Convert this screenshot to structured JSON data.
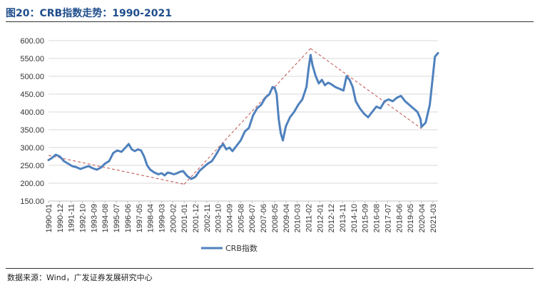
{
  "header": {
    "title": "图20：CRB指数走势：1990-2021"
  },
  "footer": {
    "source": "数据来源：Wind，广发证券发展研究中心"
  },
  "chart_data": {
    "type": "line",
    "title": "图20：CRB指数走势：1990-2021",
    "xlabel": "",
    "ylabel": "",
    "ylim": [
      150,
      600
    ],
    "y_ticks": [
      "150.00",
      "200.00",
      "250.00",
      "300.00",
      "350.00",
      "400.00",
      "450.00",
      "500.00",
      "550.00",
      "600.00"
    ],
    "x_tick_labels": [
      "1990-01",
      "1990-12",
      "1991-11",
      "1992-10",
      "1993-09",
      "1994-08",
      "1995-07",
      "1996-06",
      "1997-05",
      "1998-04",
      "1999-03",
      "2000-02",
      "2001-01",
      "2001-12",
      "2002-11",
      "2003-10",
      "2004-09",
      "2005-08",
      "2006-07",
      "2007-06",
      "2008-05",
      "2009-04",
      "2010-03",
      "2011-02",
      "2012-01",
      "2012-12",
      "2013-11",
      "2014-10",
      "2015-09",
      "2016-08",
      "2017-07",
      "2018-06",
      "2019-05",
      "2020-04",
      "2021-03"
    ],
    "x_range": [
      "1990-01",
      "2021-08"
    ],
    "grid": "horizontal",
    "legend": "bottom-center",
    "colors": {
      "series": "#4f81bd",
      "trend": "#c0504d"
    },
    "series": [
      {
        "name": "CRB指数",
        "x": [
          "1990-01",
          "1990-04",
          "1990-08",
          "1990-12",
          "1991-04",
          "1991-08",
          "1991-12",
          "1992-04",
          "1992-08",
          "1992-12",
          "1993-04",
          "1993-08",
          "1993-12",
          "1994-04",
          "1994-08",
          "1994-12",
          "1995-04",
          "1995-08",
          "1995-12",
          "1996-04",
          "1996-07",
          "1996-10",
          "1997-01",
          "1997-04",
          "1997-07",
          "1997-10",
          "1998-01",
          "1998-04",
          "1998-08",
          "1998-12",
          "1999-03",
          "1999-06",
          "1999-09",
          "1999-12",
          "2000-03",
          "2000-06",
          "2000-09",
          "2000-12",
          "2001-04",
          "2001-08",
          "2001-12",
          "2002-04",
          "2002-08",
          "2002-12",
          "2003-04",
          "2003-08",
          "2003-12",
          "2004-03",
          "2004-06",
          "2004-09",
          "2004-12",
          "2005-04",
          "2005-08",
          "2005-12",
          "2006-04",
          "2006-08",
          "2006-12",
          "2007-04",
          "2007-08",
          "2007-12",
          "2008-03",
          "2008-05",
          "2008-07",
          "2008-09",
          "2008-11",
          "2009-01",
          "2009-04",
          "2009-08",
          "2009-12",
          "2010-04",
          "2010-08",
          "2010-12",
          "2011-02",
          "2011-04",
          "2011-06",
          "2011-09",
          "2011-12",
          "2012-03",
          "2012-06",
          "2012-09",
          "2012-12",
          "2013-04",
          "2013-08",
          "2013-12",
          "2014-03",
          "2014-06",
          "2014-09",
          "2014-12",
          "2015-04",
          "2015-08",
          "2015-12",
          "2016-04",
          "2016-08",
          "2016-12",
          "2017-04",
          "2017-08",
          "2017-12",
          "2018-04",
          "2018-08",
          "2018-12",
          "2019-04",
          "2019-08",
          "2019-12",
          "2020-03",
          "2020-04",
          "2020-08",
          "2020-12",
          "2021-03",
          "2021-05",
          "2021-08"
        ],
        "values": [
          265,
          270,
          280,
          275,
          262,
          255,
          248,
          245,
          240,
          244,
          248,
          242,
          238,
          244,
          255,
          262,
          285,
          292,
          288,
          300,
          310,
          295,
          290,
          295,
          292,
          275,
          250,
          238,
          230,
          225,
          228,
          222,
          230,
          228,
          225,
          228,
          232,
          234,
          220,
          212,
          218,
          235,
          245,
          255,
          262,
          280,
          300,
          310,
          295,
          300,
          290,
          305,
          320,
          345,
          355,
          390,
          410,
          420,
          440,
          450,
          470,
          468,
          450,
          380,
          340,
          320,
          360,
          385,
          400,
          420,
          435,
          470,
          520,
          560,
          530,
          500,
          480,
          490,
          475,
          482,
          478,
          470,
          465,
          460,
          500,
          490,
          470,
          430,
          410,
          395,
          385,
          400,
          415,
          410,
          430,
          435,
          430,
          440,
          445,
          430,
          420,
          410,
          400,
          380,
          358,
          370,
          420,
          500,
          555,
          565
        ]
      }
    ],
    "trend_lines": [
      {
        "x": [
          "1990-01",
          "2001-01"
        ],
        "values": [
          278,
          197
        ]
      },
      {
        "x": [
          "2001-01",
          "2008-05"
        ],
        "values": [
          197,
          470
        ]
      },
      {
        "x": [
          "2008-05",
          "2011-04"
        ],
        "values": [
          470,
          578
        ]
      },
      {
        "x": [
          "2011-04",
          "2020-04"
        ],
        "values": [
          578,
          353
        ]
      }
    ],
    "legend_entries": [
      "CRB指数"
    ]
  }
}
